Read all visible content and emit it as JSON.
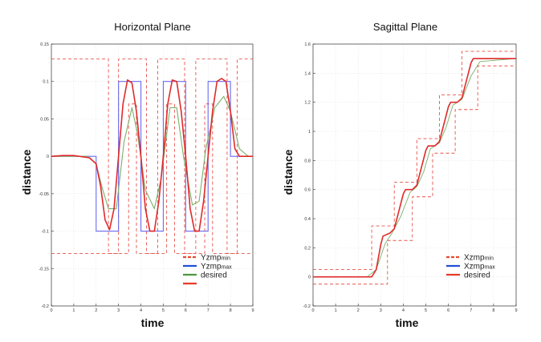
{
  "colors": {
    "bound": "#e8524a",
    "reference": "#6a6af0",
    "filtered": "#7ab06a",
    "response": "#e02a2a",
    "grid": "#d8d8d8",
    "legend_bound": "#e84a2e",
    "legend_ref": "#1f4fd6",
    "legend_filtered": "#4a9a3a",
    "legend_response": "#e83a2a"
  },
  "chart_data": [
    {
      "type": "line",
      "title": "Horizontal Plane",
      "xlabel": "time",
      "ylabel": "distance",
      "xlim": [
        0,
        9
      ],
      "ylim": [
        -0.2,
        0.15
      ],
      "grid": true,
      "legend_position": "bottom-right",
      "xticks": [
        0,
        1,
        2,
        3,
        4,
        5,
        6,
        7,
        8,
        9
      ],
      "xtick_labels": [
        "0",
        "1",
        "2",
        "3",
        "4",
        "5",
        "6",
        "7",
        "8",
        "9"
      ],
      "yticks": [
        -0.2,
        -0.15,
        -0.1,
        -0.05,
        0,
        0.05,
        0.1,
        0.15
      ],
      "ytick_labels": [
        "-0.2",
        "-0.15",
        "-0.1",
        "-0.05",
        "0",
        "0.05",
        "0.1",
        "0.15"
      ],
      "legend": [
        {
          "name": "Yzmp",
          "sub": "min",
          "style": "dashed",
          "color_key": "legend_bound"
        },
        {
          "name": "Yzmp",
          "sub": "max",
          "style": "solid",
          "color_key": "legend_ref"
        },
        {
          "name": "desired",
          "sub": "",
          "style": "solid",
          "color_key": "legend_filtered"
        },
        {
          "name": "",
          "sub": "",
          "style": "solid",
          "color_key": "legend_response"
        }
      ],
      "series": [
        {
          "role": "bound-max",
          "color_key": "bound",
          "dash": "4,3",
          "width": 0.9,
          "x": [
            0,
            2.55,
            2.55,
            3.0,
            3.0,
            4.25,
            4.25,
            4.75,
            4.75,
            5.95,
            5.95,
            6.45,
            6.45,
            7.85,
            7.85,
            8.3,
            8.3,
            9
          ],
          "y": [
            0.13,
            0.13,
            -0.13,
            -0.13,
            0.13,
            0.13,
            -0.13,
            -0.13,
            0.13,
            0.13,
            -0.13,
            -0.13,
            0.13,
            0.13,
            -0.13,
            -0.13,
            0.13,
            0.13
          ]
        },
        {
          "role": "bound-min",
          "color_key": "bound",
          "dash": "4,3",
          "width": 0.9,
          "x": [
            0,
            2.0,
            2.0,
            3.45,
            3.45,
            3.8,
            3.8,
            5.15,
            5.15,
            5.5,
            5.5,
            6.85,
            6.85,
            7.2,
            7.2,
            9
          ],
          "y": [
            -0.13,
            -0.13,
            -0.13,
            -0.13,
            0.07,
            0.07,
            -0.13,
            -0.13,
            0.07,
            0.07,
            -0.13,
            -0.13,
            0.07,
            0.07,
            -0.13,
            -0.13
          ]
        },
        {
          "role": "reference",
          "color_key": "reference",
          "dash": "",
          "width": 1.1,
          "x": [
            0,
            2.0,
            2.0,
            3.0,
            3.0,
            4.0,
            4.0,
            5.0,
            5.0,
            6.0,
            6.0,
            7.0,
            7.0,
            8.0,
            8.0,
            9
          ],
          "y": [
            0,
            0,
            -0.1,
            -0.1,
            0.1,
            0.1,
            -0.1,
            -0.1,
            0.1,
            0.1,
            -0.1,
            -0.1,
            0.1,
            0.1,
            0,
            0
          ]
        },
        {
          "role": "filtered",
          "color_key": "filtered",
          "dash": "",
          "width": 1.1,
          "x": [
            0,
            1.6,
            2.0,
            2.25,
            2.55,
            2.9,
            3.25,
            3.6,
            3.85,
            4.2,
            4.6,
            4.9,
            5.3,
            5.6,
            5.9,
            6.3,
            6.6,
            6.9,
            7.3,
            7.7,
            8.0,
            8.4,
            8.8,
            9
          ],
          "y": [
            0,
            0,
            -0.01,
            -0.04,
            -0.07,
            -0.07,
            0.02,
            0.065,
            0.03,
            -0.045,
            -0.07,
            -0.03,
            0.065,
            0.065,
            0.0,
            -0.065,
            -0.06,
            0.01,
            0.065,
            0.08,
            0.06,
            0.01,
            0.0,
            0.0
          ]
        },
        {
          "role": "response",
          "color_key": "response",
          "dash": "",
          "width": 1.6,
          "x": [
            0,
            0.5,
            1.0,
            1.7,
            2.0,
            2.2,
            2.4,
            2.6,
            2.8,
            3.0,
            3.2,
            3.4,
            3.6,
            3.8,
            4.0,
            4.2,
            4.4,
            4.6,
            4.8,
            5.0,
            5.2,
            5.4,
            5.6,
            5.8,
            6.0,
            6.2,
            6.4,
            6.6,
            6.8,
            7.0,
            7.2,
            7.4,
            7.6,
            7.8,
            8.0,
            8.2,
            8.4,
            8.6,
            9
          ],
          "y": [
            0,
            0.001,
            0.001,
            -0.002,
            -0.01,
            -0.04,
            -0.085,
            -0.098,
            -0.07,
            0.0,
            0.07,
            0.102,
            0.098,
            0.06,
            0.0,
            -0.07,
            -0.1,
            -0.1,
            -0.06,
            0.0,
            0.07,
            0.102,
            0.1,
            0.06,
            0.0,
            -0.07,
            -0.1,
            -0.1,
            -0.06,
            0.0,
            0.06,
            0.1,
            0.104,
            0.1,
            0.06,
            0.01,
            0.0,
            0.0,
            0.0
          ]
        }
      ]
    },
    {
      "type": "line",
      "title": "Sagittal Plane",
      "xlabel": "time",
      "ylabel": "distance",
      "xlim": [
        0,
        9
      ],
      "ylim": [
        -0.2,
        1.6
      ],
      "grid": true,
      "legend_position": "bottom-right",
      "xticks": [
        0,
        1,
        2,
        3,
        4,
        5,
        6,
        7,
        8,
        9
      ],
      "xtick_labels": [
        "0",
        "1",
        "2",
        "3",
        "4",
        "5",
        "6",
        "7",
        "8",
        "9"
      ],
      "yticks": [
        -0.2,
        0,
        0.2,
        0.4,
        0.6,
        0.8,
        1,
        1.2,
        1.4,
        1.6
      ],
      "ytick_labels": [
        "-0.2",
        "0",
        "0.2",
        "0.4",
        "0.6",
        "0.8",
        "1",
        "1.2",
        "1.4",
        "1.6"
      ],
      "legend": [
        {
          "name": "Xzmp",
          "sub": "min",
          "style": "dashed",
          "color_key": "legend_bound"
        },
        {
          "name": "Xzmp",
          "sub": "max",
          "style": "solid",
          "color_key": "legend_ref"
        },
        {
          "name": "desired",
          "sub": "",
          "style": "solid",
          "color_key": "legend_response"
        }
      ],
      "series": [
        {
          "role": "bound-max",
          "color_key": "bound",
          "dash": "4,3",
          "width": 0.9,
          "x": [
            0,
            2.6,
            2.6,
            3.6,
            3.6,
            4.6,
            4.6,
            5.6,
            5.6,
            6.6,
            6.6,
            7.0,
            7.0,
            9
          ],
          "y": [
            0.05,
            0.05,
            0.35,
            0.35,
            0.65,
            0.65,
            0.95,
            0.95,
            1.25,
            1.25,
            1.55,
            1.55,
            1.55,
            1.55
          ]
        },
        {
          "role": "bound-min",
          "color_key": "bound",
          "dash": "4,3",
          "width": 0.9,
          "x": [
            0,
            3.3,
            3.3,
            4.4,
            4.4,
            5.3,
            5.3,
            6.3,
            6.3,
            7.3,
            7.3,
            9
          ],
          "y": [
            -0.05,
            -0.05,
            0.25,
            0.25,
            0.55,
            0.55,
            0.85,
            0.85,
            1.15,
            1.15,
            1.45,
            1.45
          ]
        },
        {
          "role": "filtered",
          "color_key": "filtered",
          "dash": "",
          "width": 0.9,
          "x": [
            0,
            2.4,
            2.8,
            3.2,
            3.5,
            3.9,
            4.3,
            4.6,
            4.9,
            5.2,
            5.6,
            5.9,
            6.2,
            6.6,
            7.0,
            7.4,
            9
          ],
          "y": [
            0,
            0.0,
            0.05,
            0.23,
            0.3,
            0.42,
            0.58,
            0.62,
            0.72,
            0.88,
            0.92,
            1.03,
            1.18,
            1.22,
            1.38,
            1.48,
            1.5
          ]
        },
        {
          "role": "response",
          "color_key": "response",
          "dash": "",
          "width": 1.6,
          "x": [
            0,
            2.0,
            2.6,
            2.8,
            3.0,
            3.1,
            3.4,
            3.6,
            3.8,
            4.0,
            4.1,
            4.4,
            4.6,
            4.8,
            5.0,
            5.1,
            5.4,
            5.6,
            5.8,
            6.0,
            6.1,
            6.4,
            6.6,
            6.8,
            7.0,
            7.1,
            7.4,
            9
          ],
          "y": [
            0,
            0,
            0.0,
            0.05,
            0.22,
            0.28,
            0.3,
            0.33,
            0.45,
            0.57,
            0.6,
            0.6,
            0.63,
            0.75,
            0.87,
            0.9,
            0.9,
            0.93,
            1.05,
            1.17,
            1.2,
            1.2,
            1.23,
            1.35,
            1.47,
            1.5,
            1.5,
            1.5
          ]
        }
      ]
    }
  ]
}
